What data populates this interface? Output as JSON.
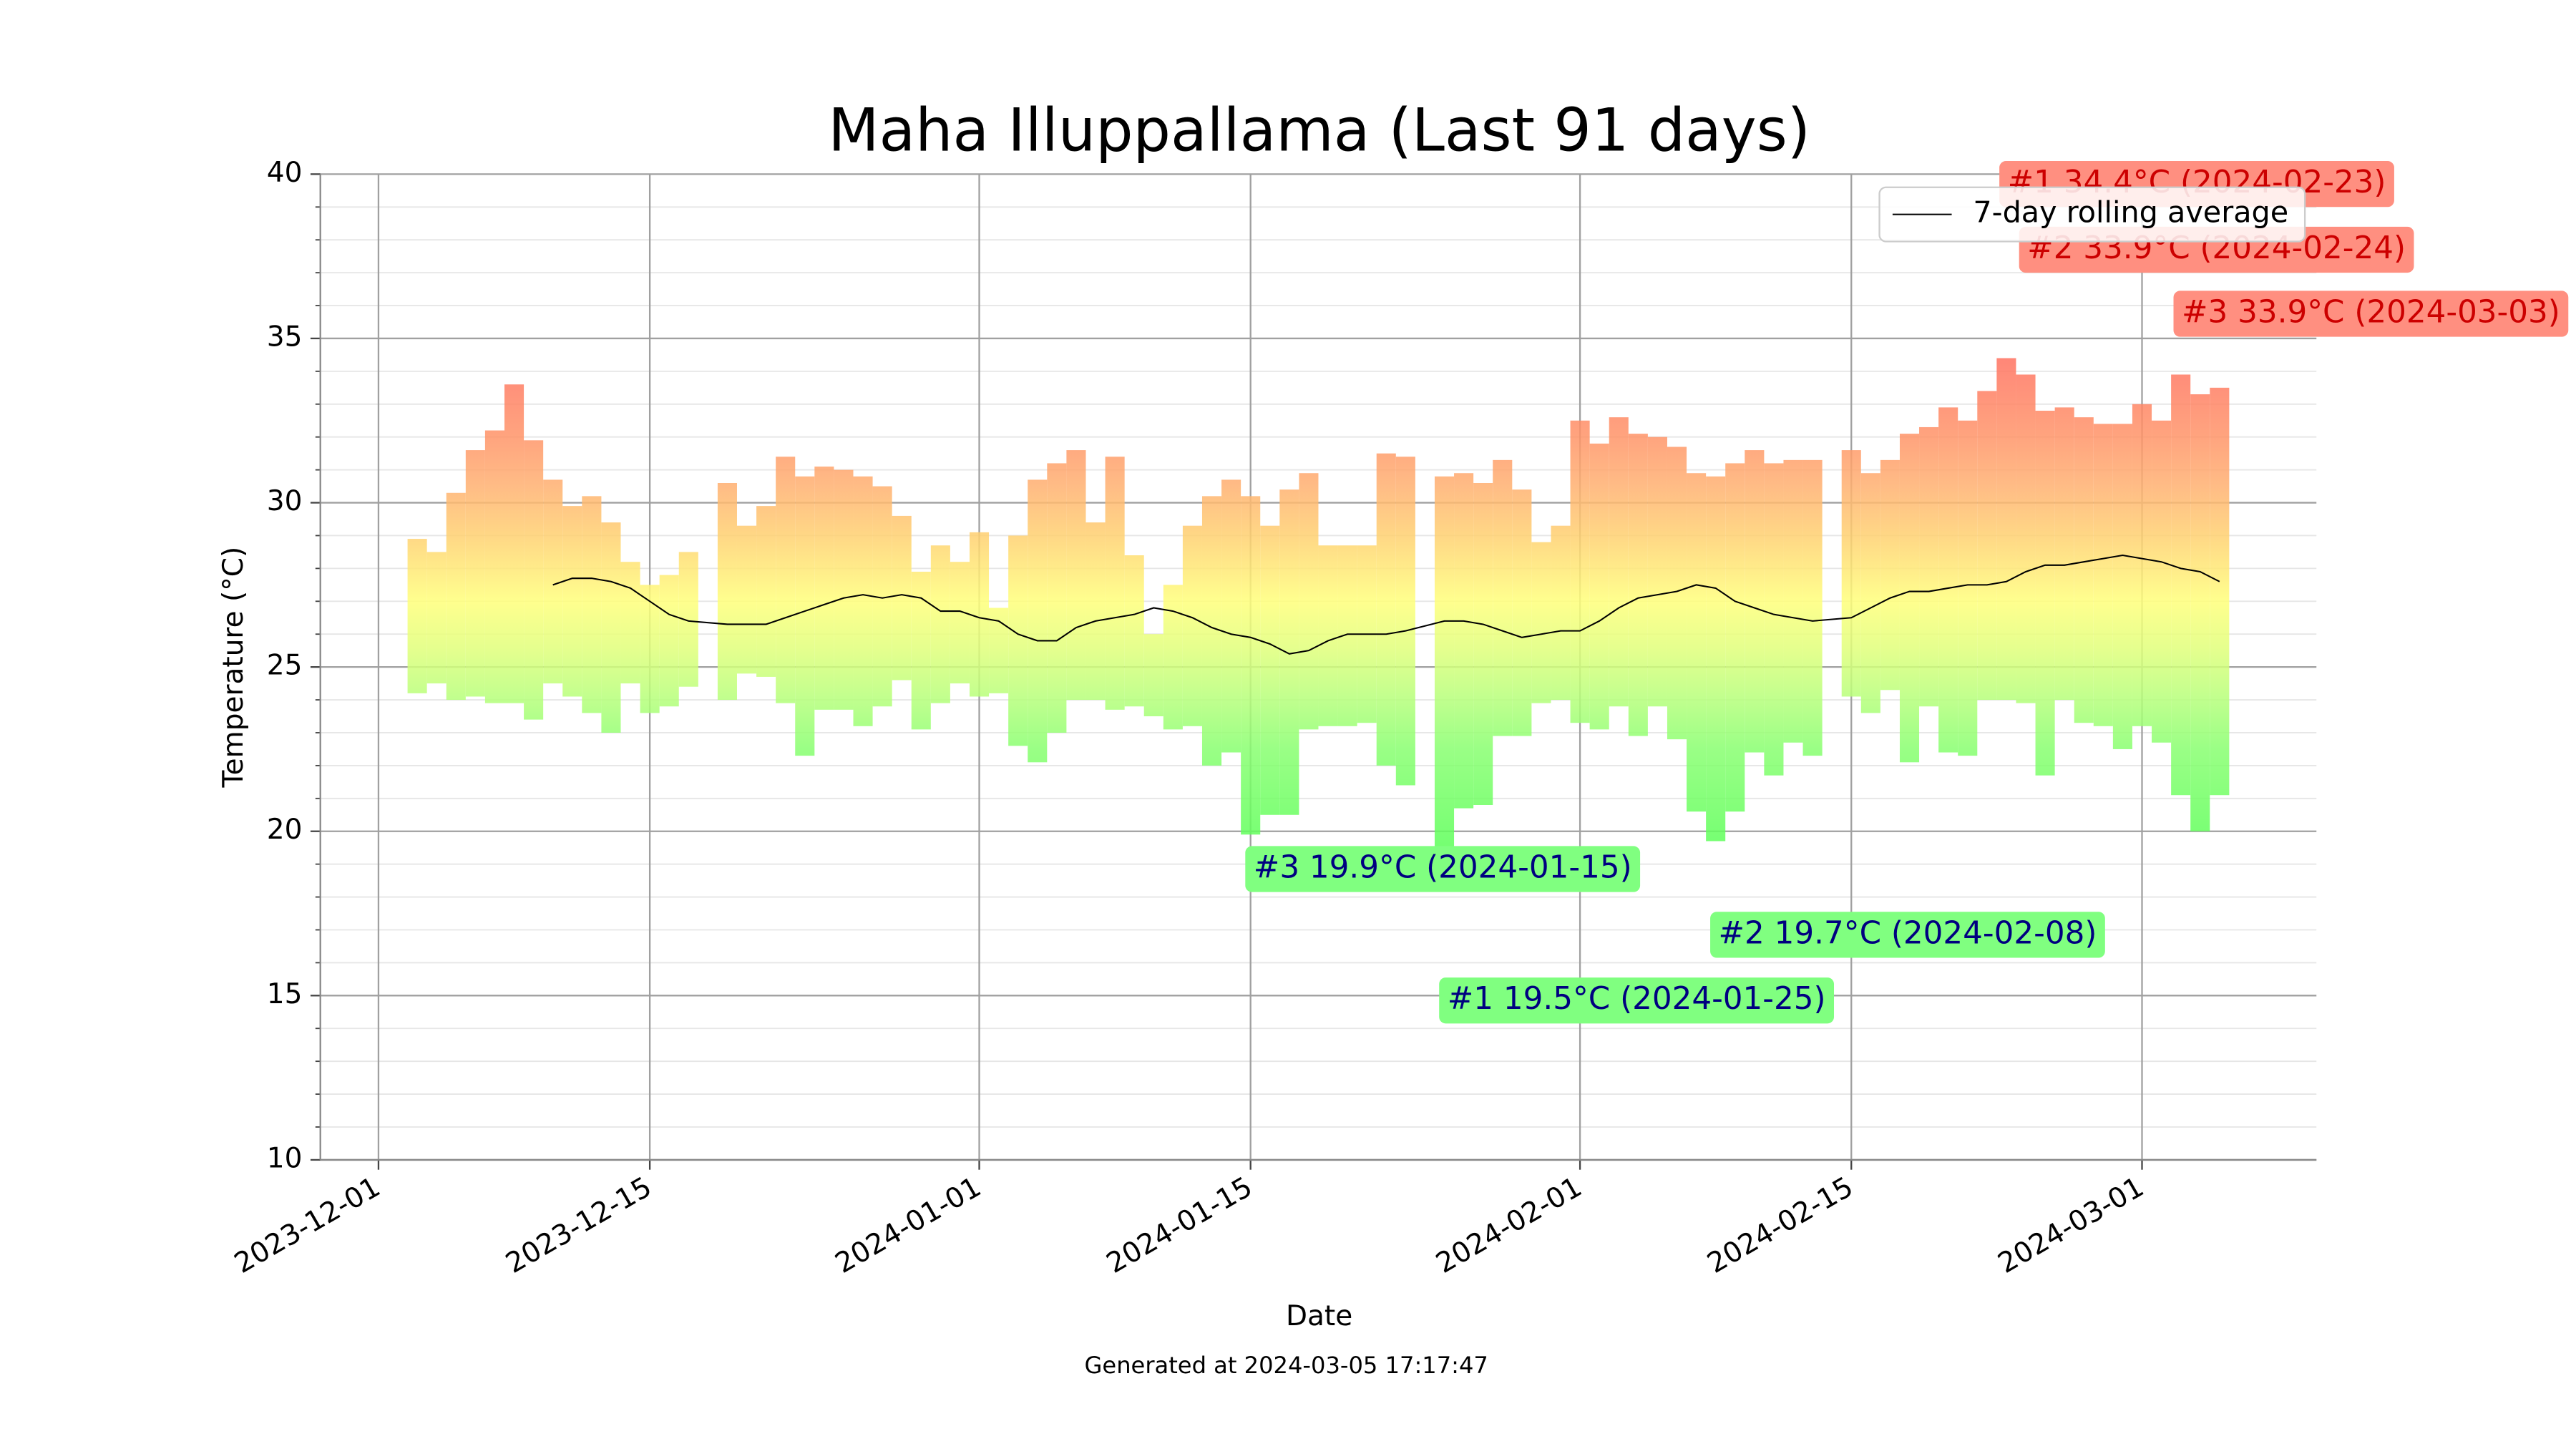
{
  "chart_data": {
    "type": "range_bar",
    "title": "Maha Illuppallama (Last 91 days)",
    "xlabel": "Date",
    "ylabel": "Temperature (°C)",
    "footer": "Generated at 2024-03-05 17:17:47",
    "x": [
      "2023-12-03",
      "2023-12-04",
      "2023-12-05",
      "2023-12-06",
      "2023-12-07",
      "2023-12-08",
      "2023-12-09",
      "2023-12-10",
      "2023-12-11",
      "2023-12-12",
      "2023-12-13",
      "2023-12-14",
      "2023-12-15",
      "2023-12-16",
      "2023-12-17",
      "2023-12-19",
      "2023-12-20",
      "2023-12-21",
      "2023-12-22",
      "2023-12-23",
      "2023-12-24",
      "2023-12-25",
      "2023-12-26",
      "2023-12-27",
      "2023-12-28",
      "2023-12-29",
      "2023-12-30",
      "2023-12-31",
      "2024-01-01",
      "2024-01-02",
      "2024-01-03",
      "2024-01-04",
      "2024-01-05",
      "2024-01-06",
      "2024-01-07",
      "2024-01-08",
      "2024-01-09",
      "2024-01-10",
      "2024-01-11",
      "2024-01-12",
      "2024-01-13",
      "2024-01-14",
      "2024-01-15",
      "2024-01-16",
      "2024-01-17",
      "2024-01-18",
      "2024-01-19",
      "2024-01-20",
      "2024-01-21",
      "2024-01-22",
      "2024-01-23",
      "2024-01-25",
      "2024-01-26",
      "2024-01-27",
      "2024-01-28",
      "2024-01-29",
      "2024-01-30",
      "2024-01-31",
      "2024-02-01",
      "2024-02-02",
      "2024-02-03",
      "2024-02-04",
      "2024-02-05",
      "2024-02-06",
      "2024-02-07",
      "2024-02-08",
      "2024-02-09",
      "2024-02-10",
      "2024-02-11",
      "2024-02-12",
      "2024-02-13",
      "2024-02-15",
      "2024-02-16",
      "2024-02-17",
      "2024-02-18",
      "2024-02-19",
      "2024-02-20",
      "2024-02-21",
      "2024-02-22",
      "2024-02-23",
      "2024-02-24",
      "2024-02-25",
      "2024-02-26",
      "2024-02-27",
      "2024-02-28",
      "2024-02-29",
      "2024-03-01",
      "2024-03-02",
      "2024-03-03",
      "2024-03-04",
      "2024-03-05"
    ],
    "high": [
      28.9,
      28.5,
      30.3,
      31.6,
      32.2,
      33.6,
      31.9,
      30.7,
      29.9,
      30.2,
      29.4,
      28.2,
      27.5,
      27.8,
      28.5,
      30.6,
      29.3,
      29.9,
      31.4,
      30.8,
      31.1,
      31.0,
      30.8,
      30.5,
      29.6,
      27.9,
      28.7,
      28.2,
      29.1,
      26.8,
      29.0,
      30.7,
      31.2,
      31.6,
      29.4,
      31.4,
      28.4,
      26.0,
      27.5,
      29.3,
      30.2,
      30.7,
      30.2,
      29.3,
      30.4,
      30.9,
      28.7,
      28.7,
      28.7,
      31.5,
      31.4,
      30.8,
      30.9,
      30.6,
      31.3,
      30.4,
      28.8,
      29.3,
      32.5,
      31.8,
      32.6,
      32.1,
      32.0,
      31.7,
      30.9,
      30.8,
      31.2,
      31.6,
      31.2,
      31.3,
      31.3,
      31.6,
      30.9,
      31.3,
      32.1,
      32.3,
      32.9,
      32.5,
      33.4,
      34.4,
      33.9,
      32.8,
      32.9,
      32.6,
      32.4,
      32.4,
      33.0,
      32.5,
      33.9,
      33.3,
      33.5
    ],
    "low": [
      24.2,
      24.5,
      24.0,
      24.1,
      23.9,
      23.9,
      23.4,
      24.5,
      24.1,
      23.6,
      23.0,
      24.5,
      23.6,
      23.8,
      24.4,
      24.0,
      24.8,
      24.7,
      23.9,
      22.3,
      23.7,
      23.7,
      23.2,
      23.8,
      24.6,
      23.1,
      23.9,
      24.5,
      24.1,
      24.2,
      22.6,
      22.1,
      23.0,
      24.0,
      24.0,
      23.7,
      23.8,
      23.5,
      23.1,
      23.2,
      22.0,
      22.4,
      19.9,
      20.5,
      20.5,
      23.1,
      23.2,
      23.2,
      23.3,
      22.0,
      21.4,
      19.5,
      20.7,
      20.8,
      22.9,
      22.9,
      23.9,
      24.0,
      23.3,
      23.1,
      23.8,
      22.9,
      23.8,
      22.8,
      20.6,
      19.7,
      20.6,
      22.4,
      21.7,
      22.7,
      22.3,
      24.1,
      23.6,
      24.3,
      22.1,
      23.8,
      22.4,
      22.3,
      24.0,
      24.0,
      23.9,
      21.7,
      24.0,
      23.3,
      23.2,
      22.5,
      23.2,
      22.7,
      21.1,
      20.0,
      21.1
    ],
    "rolling": {
      "name": "7-day rolling average",
      "color": "#000000",
      "x": [
        "2023-12-10",
        "2023-12-11",
        "2023-12-12",
        "2023-12-13",
        "2023-12-14",
        "2023-12-15",
        "2023-12-16",
        "2023-12-17",
        "2023-12-19",
        "2023-12-20",
        "2023-12-21",
        "2023-12-22",
        "2023-12-23",
        "2023-12-24",
        "2023-12-25",
        "2023-12-26",
        "2023-12-27",
        "2023-12-28",
        "2023-12-29",
        "2023-12-30",
        "2023-12-31",
        "2024-01-01",
        "2024-01-02",
        "2024-01-03",
        "2024-01-04",
        "2024-01-05",
        "2024-01-06",
        "2024-01-07",
        "2024-01-08",
        "2024-01-09",
        "2024-01-10",
        "2024-01-11",
        "2024-01-12",
        "2024-01-13",
        "2024-01-14",
        "2024-01-15",
        "2024-01-16",
        "2024-01-17",
        "2024-01-18",
        "2024-01-19",
        "2024-01-20",
        "2024-01-21",
        "2024-01-22",
        "2024-01-23",
        "2024-01-25",
        "2024-01-26",
        "2024-01-27",
        "2024-01-28",
        "2024-01-29",
        "2024-01-30",
        "2024-01-31",
        "2024-02-01",
        "2024-02-02",
        "2024-02-03",
        "2024-02-04",
        "2024-02-05",
        "2024-02-06",
        "2024-02-07",
        "2024-02-08",
        "2024-02-09",
        "2024-02-10",
        "2024-02-11",
        "2024-02-12",
        "2024-02-13",
        "2024-02-15",
        "2024-02-16",
        "2024-02-17",
        "2024-02-18",
        "2024-02-19",
        "2024-02-20",
        "2024-02-21",
        "2024-02-22",
        "2024-02-23",
        "2024-02-24",
        "2024-02-25",
        "2024-02-26",
        "2024-02-27",
        "2024-02-28",
        "2024-02-29",
        "2024-03-01",
        "2024-03-02",
        "2024-03-03",
        "2024-03-04",
        "2024-03-05"
      ],
      "values": [
        27.5,
        27.7,
        27.7,
        27.6,
        27.4,
        27.0,
        26.6,
        26.4,
        26.3,
        26.3,
        26.3,
        26.5,
        26.7,
        26.9,
        27.1,
        27.2,
        27.1,
        27.2,
        27.1,
        26.7,
        26.7,
        26.5,
        26.4,
        26.0,
        25.8,
        25.8,
        26.2,
        26.4,
        26.5,
        26.6,
        26.8,
        26.7,
        26.5,
        26.2,
        26.0,
        25.9,
        25.7,
        25.4,
        25.5,
        25.8,
        26.0,
        26.0,
        26.0,
        26.1,
        26.4,
        26.4,
        26.3,
        26.1,
        25.9,
        26.0,
        26.1,
        26.1,
        26.4,
        26.8,
        27.1,
        27.2,
        27.3,
        27.5,
        27.4,
        27.0,
        26.8,
        26.6,
        26.5,
        26.4,
        26.5,
        26.8,
        27.1,
        27.3,
        27.3,
        27.4,
        27.5,
        27.5,
        27.6,
        27.9,
        28.1,
        28.1,
        28.2,
        28.3,
        28.4,
        28.3,
        28.2,
        28.0,
        27.9,
        27.6
      ]
    },
    "annotations": [
      {
        "text": "#1 34.4°C (2024-02-23)",
        "color": "#cc0000",
        "background": "#ff8f80"
      },
      {
        "text": "#2 33.9°C (2024-02-24)",
        "color": "#cc0000",
        "background": "#ff8f80"
      },
      {
        "text": "#3 33.9°C (2024-03-03)",
        "color": "#cc0000",
        "background": "#ff8f80"
      },
      {
        "text": "#3 19.9°C (2024-01-15)",
        "color": "#000080",
        "background": "#80ff80"
      },
      {
        "text": "#2 19.7°C (2024-02-08)",
        "color": "#000080",
        "background": "#80ff80"
      },
      {
        "text": "#1 19.5°C (2024-01-25)",
        "color": "#000080",
        "background": "#80ff80"
      }
    ],
    "xlim": [
      "2023-11-28",
      "2024-03-10"
    ],
    "xticks": [
      "2023-12-01",
      "2023-12-15",
      "2024-01-01",
      "2024-01-15",
      "2024-02-01",
      "2024-02-15",
      "2024-03-01"
    ],
    "ylim": [
      10,
      40
    ],
    "yticks": [
      10,
      15,
      20,
      25,
      30,
      35,
      40
    ],
    "yminorticks": [
      11,
      12,
      13,
      14,
      16,
      17,
      18,
      19,
      21,
      22,
      23,
      24,
      26,
      27,
      28,
      29,
      31,
      32,
      33,
      34,
      36,
      37,
      38,
      39
    ],
    "grid": true,
    "legend": "upper right"
  }
}
